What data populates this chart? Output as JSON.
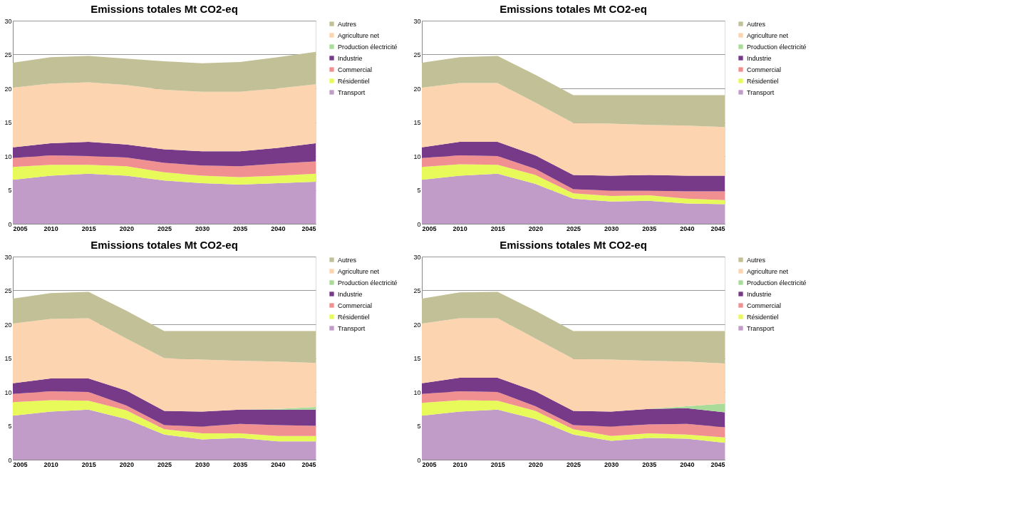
{
  "chart_data": [
    {
      "type": "area",
      "stacked": true,
      "title": "Emissions totales Mt CO2-eq",
      "x": [
        2005,
        2010,
        2015,
        2020,
        2025,
        2030,
        2035,
        2040,
        2045
      ],
      "xlim": [
        2005,
        2045
      ],
      "xticks": [
        2005,
        2010,
        2015,
        2020,
        2025,
        2030,
        2035,
        2040,
        2045
      ],
      "ylim": [
        0,
        30
      ],
      "yticks": [
        0,
        5,
        10,
        15,
        20,
        25,
        30
      ],
      "grid": "y",
      "legend": "right",
      "series": [
        {
          "name": "Transport",
          "color": "#c19cc8",
          "values": [
            6.5,
            7.1,
            7.4,
            7.1,
            6.4,
            6.0,
            5.8,
            6.0,
            6.2
          ]
        },
        {
          "name": "Résidentiel",
          "color": "#e8fa5a",
          "values": [
            1.9,
            1.6,
            1.3,
            1.4,
            1.2,
            1.1,
            1.1,
            1.1,
            1.2
          ]
        },
        {
          "name": "Commercial",
          "color": "#f09090",
          "values": [
            1.3,
            1.4,
            1.3,
            1.3,
            1.4,
            1.5,
            1.6,
            1.8,
            1.8
          ]
        },
        {
          "name": "Industrie",
          "color": "#773a88",
          "values": [
            1.6,
            1.8,
            2.1,
            1.9,
            2.0,
            2.1,
            2.2,
            2.3,
            2.7
          ]
        },
        {
          "name": "Production électricité",
          "color": "#a8dc98",
          "values": [
            null,
            null,
            null,
            null,
            null,
            null,
            null,
            null,
            null
          ]
        },
        {
          "name": "Agriculture net",
          "color": "#fcd5b0",
          "values": [
            8.8,
            8.8,
            8.8,
            8.8,
            8.8,
            8.8,
            8.8,
            8.8,
            8.7
          ]
        },
        {
          "name": "Autres",
          "color": "#c2c096",
          "values": [
            3.7,
            3.9,
            3.9,
            3.9,
            4.2,
            4.2,
            4.4,
            4.6,
            4.8
          ]
        }
      ]
    },
    {
      "type": "area",
      "stacked": true,
      "title": "Emissions totales Mt CO2-eq",
      "x": [
        2005,
        2010,
        2015,
        2020,
        2025,
        2030,
        2035,
        2040,
        2045
      ],
      "xlim": [
        2005,
        2045
      ],
      "xticks": [
        2005,
        2010,
        2015,
        2020,
        2025,
        2030,
        2035,
        2040,
        2045
      ],
      "ylim": [
        0,
        30
      ],
      "yticks": [
        0,
        5,
        10,
        15,
        20,
        25,
        30
      ],
      "grid": "y",
      "legend": "right",
      "series": [
        {
          "name": "Transport",
          "color": "#c19cc8",
          "values": [
            6.5,
            7.1,
            7.4,
            5.9,
            3.7,
            3.3,
            3.4,
            3.0,
            2.9
          ]
        },
        {
          "name": "Résidentiel",
          "color": "#e8fa5a",
          "values": [
            1.9,
            1.7,
            1.3,
            1.3,
            0.8,
            0.8,
            0.8,
            0.7,
            0.6
          ]
        },
        {
          "name": "Commercial",
          "color": "#f09090",
          "values": [
            1.3,
            1.3,
            1.3,
            0.9,
            0.6,
            0.8,
            0.7,
            1.1,
            1.3
          ]
        },
        {
          "name": "Industrie",
          "color": "#773a88",
          "values": [
            1.6,
            2.0,
            2.1,
            2.0,
            2.1,
            2.2,
            2.3,
            2.3,
            2.3
          ]
        },
        {
          "name": "Production électricité",
          "color": "#a8dc98",
          "values": [
            null,
            null,
            null,
            null,
            null,
            null,
            null,
            null,
            null
          ]
        },
        {
          "name": "Agriculture net",
          "color": "#fcd5b0",
          "values": [
            8.8,
            8.7,
            8.7,
            7.8,
            7.7,
            7.7,
            7.4,
            7.4,
            7.2
          ]
        },
        {
          "name": "Autres",
          "color": "#c2c096",
          "values": [
            3.7,
            3.8,
            4.0,
            4.1,
            4.1,
            4.2,
            4.4,
            4.5,
            4.7
          ]
        }
      ]
    },
    {
      "type": "area",
      "stacked": true,
      "title": "Emissions totales Mt CO2-eq",
      "x": [
        2005,
        2010,
        2015,
        2020,
        2025,
        2030,
        2035,
        2040,
        2045
      ],
      "xlim": [
        2005,
        2045
      ],
      "xticks": [
        2005,
        2010,
        2015,
        2020,
        2025,
        2030,
        2035,
        2040,
        2045
      ],
      "ylim": [
        0,
        30
      ],
      "yticks": [
        0,
        5,
        10,
        15,
        20,
        25,
        30
      ],
      "grid": "y",
      "legend": "right",
      "series": [
        {
          "name": "Transport",
          "color": "#c19cc8",
          "values": [
            6.5,
            7.1,
            7.4,
            6.0,
            3.7,
            3.0,
            3.2,
            2.7,
            2.7
          ]
        },
        {
          "name": "Résidentiel",
          "color": "#e8fa5a",
          "values": [
            2.0,
            1.7,
            1.3,
            1.3,
            0.8,
            0.9,
            0.7,
            0.8,
            0.8
          ]
        },
        {
          "name": "Commercial",
          "color": "#f09090",
          "values": [
            1.2,
            1.3,
            1.3,
            0.7,
            0.6,
            1.0,
            1.4,
            1.6,
            1.5
          ]
        },
        {
          "name": "Industrie",
          "color": "#773a88",
          "values": [
            1.6,
            1.9,
            2.0,
            2.2,
            2.1,
            2.2,
            2.1,
            2.3,
            2.4
          ]
        },
        {
          "name": "Production électricité",
          "color": "#a8dc98",
          "values": [
            0,
            0,
            0,
            0,
            0,
            0,
            0,
            0.1,
            0.4
          ]
        },
        {
          "name": "Agriculture net",
          "color": "#fcd5b0",
          "values": [
            8.8,
            8.8,
            8.9,
            7.7,
            7.8,
            7.7,
            7.2,
            7.0,
            6.5
          ]
        },
        {
          "name": "Autres",
          "color": "#c2c096",
          "values": [
            3.7,
            3.8,
            3.9,
            4.1,
            4.0,
            4.2,
            4.4,
            4.5,
            4.7
          ]
        }
      ]
    },
    {
      "type": "area",
      "stacked": true,
      "title": "Emissions totales Mt CO2-eq",
      "x": [
        2005,
        2010,
        2015,
        2020,
        2025,
        2030,
        2035,
        2040,
        2045
      ],
      "xlim": [
        2005,
        2045
      ],
      "xticks": [
        2005,
        2010,
        2015,
        2020,
        2025,
        2030,
        2035,
        2040,
        2045
      ],
      "ylim": [
        0,
        30
      ],
      "yticks": [
        0,
        5,
        10,
        15,
        20,
        25,
        30
      ],
      "grid": "y",
      "legend": "right",
      "series": [
        {
          "name": "Transport",
          "color": "#c19cc8",
          "values": [
            6.5,
            7.1,
            7.4,
            6.0,
            3.7,
            2.8,
            3.2,
            3.1,
            2.5
          ]
        },
        {
          "name": "Résidentiel",
          "color": "#e8fa5a",
          "values": [
            1.9,
            1.7,
            1.3,
            1.2,
            0.8,
            0.7,
            0.7,
            0.6,
            0.8
          ]
        },
        {
          "name": "Commercial",
          "color": "#f09090",
          "values": [
            1.3,
            1.3,
            1.3,
            0.7,
            0.6,
            1.4,
            1.3,
            1.6,
            1.5
          ]
        },
        {
          "name": "Industrie",
          "color": "#773a88",
          "values": [
            1.6,
            2.0,
            2.1,
            2.2,
            2.1,
            2.2,
            2.3,
            2.3,
            2.2
          ]
        },
        {
          "name": "Production électricité",
          "color": "#a8dc98",
          "values": [
            0,
            0,
            0,
            0,
            0,
            0,
            0,
            0.3,
            1.3
          ]
        },
        {
          "name": "Agriculture net",
          "color": "#fcd5b0",
          "values": [
            8.8,
            8.8,
            8.8,
            7.8,
            7.7,
            7.7,
            7.1,
            6.6,
            5.9
          ]
        },
        {
          "name": "Autres",
          "color": "#c2c096",
          "values": [
            3.7,
            3.8,
            3.9,
            4.1,
            4.1,
            4.2,
            4.4,
            4.5,
            4.8
          ]
        }
      ]
    }
  ]
}
